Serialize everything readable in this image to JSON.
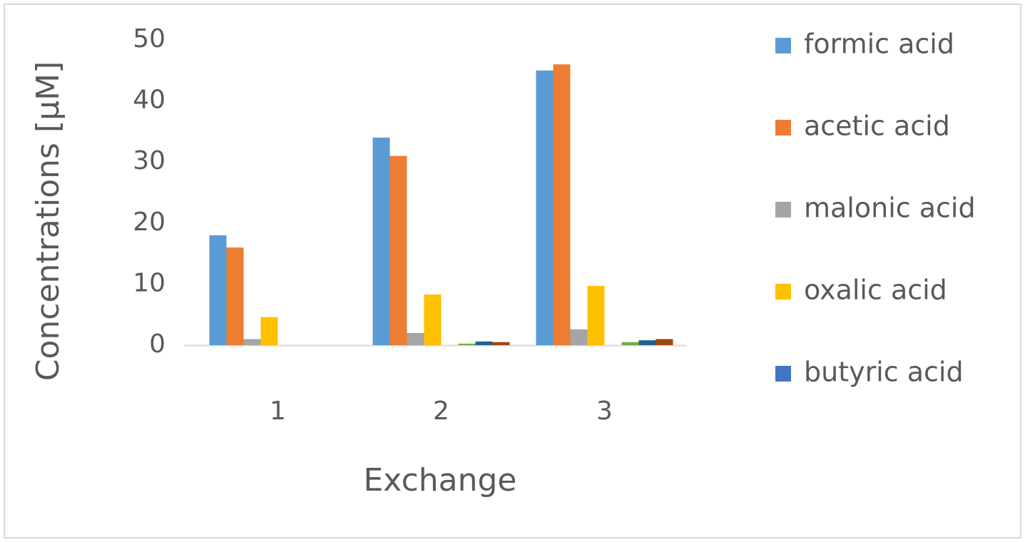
{
  "chart_data": {
    "type": "bar",
    "y_label": "Concentrations [µM]",
    "x_label": "Exchange",
    "categories": [
      "1",
      "2",
      "3"
    ],
    "series": [
      {
        "name": "formic acid",
        "color": "#5b9bd5",
        "values": [
          18,
          34,
          45
        ]
      },
      {
        "name": "acetic acid",
        "color": "#ed7d31",
        "values": [
          16,
          31,
          46
        ]
      },
      {
        "name": "malonic acid",
        "color": "#a5a5a5",
        "values": [
          1,
          2,
          2.6
        ]
      },
      {
        "name": "oxalic acid",
        "color": "#ffc000",
        "values": [
          4.6,
          8.3,
          9.7
        ]
      },
      {
        "name": "butyric acid",
        "color": "#4472c4",
        "values": [
          0,
          0,
          0
        ]
      },
      {
        "color": "#70ad47",
        "values": [
          0,
          0.25,
          0.5
        ]
      },
      {
        "color": "#255e91",
        "values": [
          0,
          0.6,
          0.8
        ]
      },
      {
        "color": "#9e480e",
        "values": [
          0,
          0.5,
          1.0
        ]
      }
    ],
    "ylim": [
      0,
      50
    ],
    "yticks": [
      0,
      10,
      20,
      30,
      40,
      50
    ],
    "grid": false
  }
}
